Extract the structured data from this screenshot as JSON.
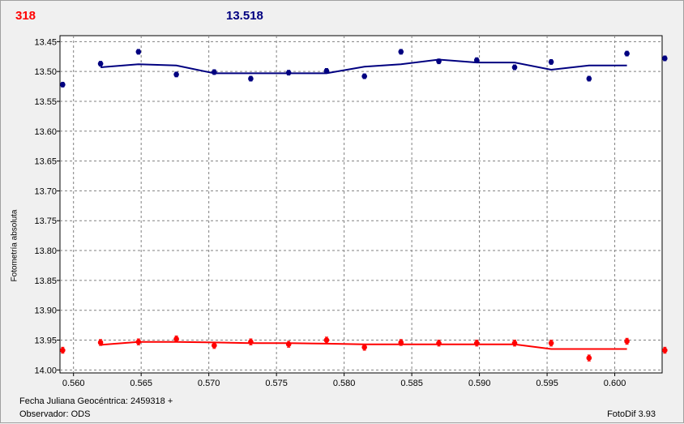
{
  "header": {
    "left_value": "318",
    "center_value": "13.518"
  },
  "axis": {
    "ylabel": "Fotometría absoluta"
  },
  "footer": {
    "date_label": "Fecha Juliana Geocéntrica: 2459318 +",
    "observer_label": "Observador: ODS",
    "software_label": "FotoDif 3.93"
  },
  "colors": {
    "series_blue": "#000080",
    "series_red": "#ff0000",
    "grid": "#808080"
  },
  "chart_data": {
    "type": "scatter",
    "xlim": [
      0.559,
      0.6035
    ],
    "ylim": [
      13.44,
      14.005
    ],
    "y_inverted": true,
    "grid": true,
    "x_ticks": [
      0.56,
      0.565,
      0.57,
      0.575,
      0.58,
      0.585,
      0.59,
      0.595,
      0.6
    ],
    "x_tick_labels": [
      "0.560",
      "0.565",
      "0.570",
      "0.575",
      "0.580",
      "0.585",
      "0.590",
      "0.595",
      "0.600"
    ],
    "y_ticks": [
      13.45,
      13.5,
      13.55,
      13.6,
      13.65,
      13.7,
      13.75,
      13.8,
      13.85,
      13.9,
      13.95,
      14.0
    ],
    "y_tick_labels": [
      "13.45",
      "13.50",
      "13.55",
      "13.60",
      "13.65",
      "13.70",
      "13.75",
      "13.80",
      "13.85",
      "13.90",
      "13.95",
      "14.00"
    ],
    "series": [
      {
        "color": "#000080",
        "x": [
          0.5592,
          0.562,
          0.5648,
          0.5676,
          0.5704,
          0.5731,
          0.5759,
          0.5787,
          0.5815,
          0.5842,
          0.587,
          0.5898,
          0.5926,
          0.5953,
          0.5981,
          0.6009,
          0.6037
        ],
        "y": [
          13.522,
          13.487,
          13.467,
          13.505,
          13.501,
          13.512,
          13.502,
          13.499,
          13.508,
          13.467,
          13.483,
          13.481,
          13.493,
          13.484,
          13.512,
          13.47,
          13.478
        ],
        "error": [
          0.004,
          0.004,
          0.004,
          0.004,
          0.004,
          0.004,
          0.004,
          0.004,
          0.004,
          0.004,
          0.004,
          0.004,
          0.004,
          0.004,
          0.004,
          0.004,
          0.004
        ],
        "fit_x": [
          0.562,
          0.5648,
          0.5676,
          0.5704,
          0.5731,
          0.5759,
          0.5787,
          0.5815,
          0.5842,
          0.587,
          0.5898,
          0.5926,
          0.5953,
          0.5981,
          0.6009
        ],
        "fit_y": [
          13.493,
          13.488,
          13.49,
          13.503,
          13.503,
          13.503,
          13.503,
          13.492,
          13.488,
          13.48,
          13.485,
          13.485,
          13.497,
          13.49,
          13.49
        ]
      },
      {
        "color": "#ff0000",
        "x": [
          0.5592,
          0.562,
          0.5648,
          0.5676,
          0.5704,
          0.5731,
          0.5759,
          0.5787,
          0.5815,
          0.5842,
          0.587,
          0.5898,
          0.5926,
          0.5953,
          0.5981,
          0.6009,
          0.6037
        ],
        "y": [
          13.967,
          13.954,
          13.953,
          13.948,
          13.959,
          13.953,
          13.957,
          13.95,
          13.962,
          13.954,
          13.955,
          13.955,
          13.955,
          13.955,
          13.98,
          13.952,
          13.967
        ],
        "error": [
          0.005,
          0.005,
          0.005,
          0.005,
          0.005,
          0.005,
          0.005,
          0.005,
          0.005,
          0.005,
          0.005,
          0.005,
          0.005,
          0.005,
          0.005,
          0.005,
          0.005
        ],
        "fit_x": [
          0.562,
          0.5648,
          0.5676,
          0.5704,
          0.5731,
          0.5759,
          0.5787,
          0.5815,
          0.5842,
          0.587,
          0.5898,
          0.5926,
          0.5953,
          0.5981,
          0.6009
        ],
        "fit_y": [
          13.958,
          13.953,
          13.953,
          13.954,
          13.955,
          13.955,
          13.956,
          13.957,
          13.957,
          13.957,
          13.957,
          13.957,
          13.965,
          13.965,
          13.965
        ]
      }
    ]
  }
}
